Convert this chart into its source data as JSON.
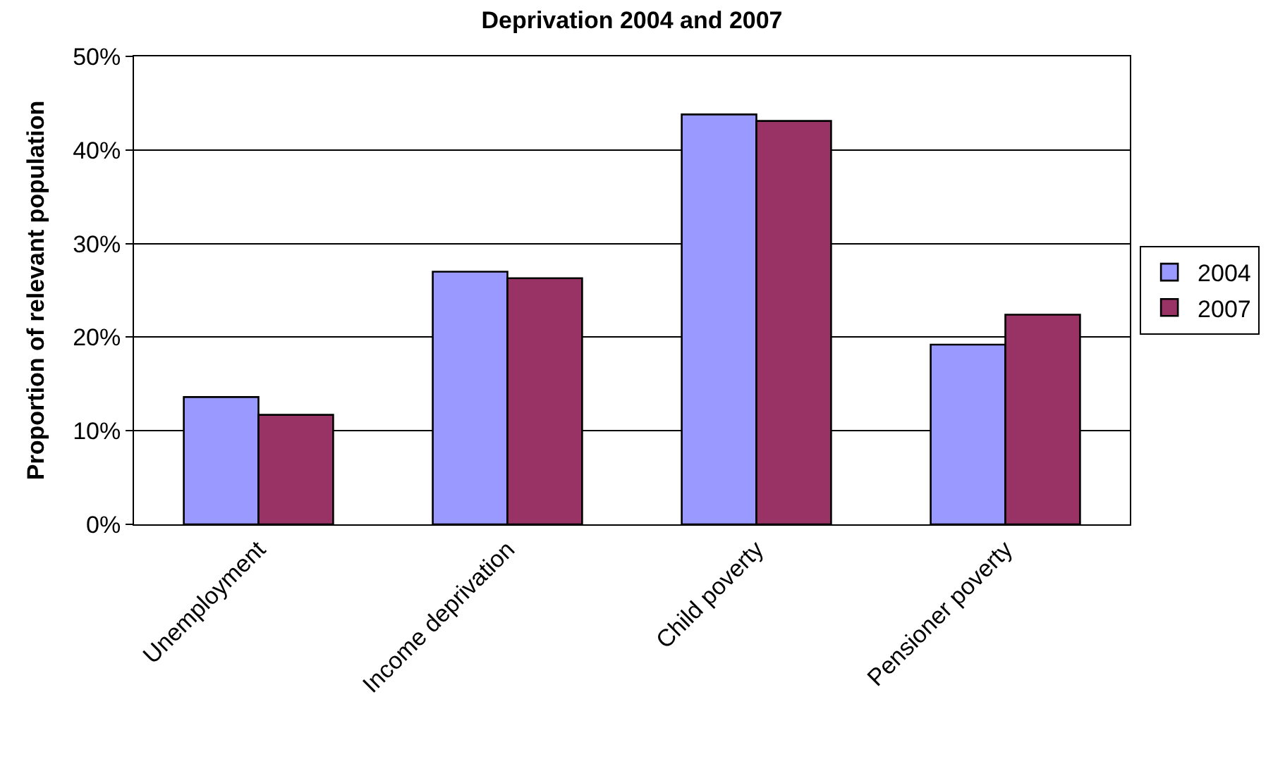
{
  "chart_data": {
    "type": "bar",
    "title": "Deprivation 2004 and 2007",
    "ylabel": "Proportion of relevant population",
    "categories": [
      "Unemployment",
      "Income deprivation",
      "Child poverty",
      "Pensioner poverty"
    ],
    "series": [
      {
        "name": "2004",
        "color": "#9999ff",
        "values": [
          13.6,
          27.0,
          43.8,
          19.2
        ]
      },
      {
        "name": "2007",
        "color": "#993366",
        "values": [
          11.7,
          26.3,
          43.1,
          22.4
        ]
      }
    ],
    "ylim": [
      0,
      50
    ],
    "yticks": [
      {
        "value": 0,
        "label": "0%"
      },
      {
        "value": 10,
        "label": "10%"
      },
      {
        "value": 20,
        "label": "20%"
      },
      {
        "value": 30,
        "label": "30%"
      },
      {
        "value": 40,
        "label": "40%"
      },
      {
        "value": 50,
        "label": "50%"
      }
    ],
    "grid": "y",
    "legend": "right"
  }
}
